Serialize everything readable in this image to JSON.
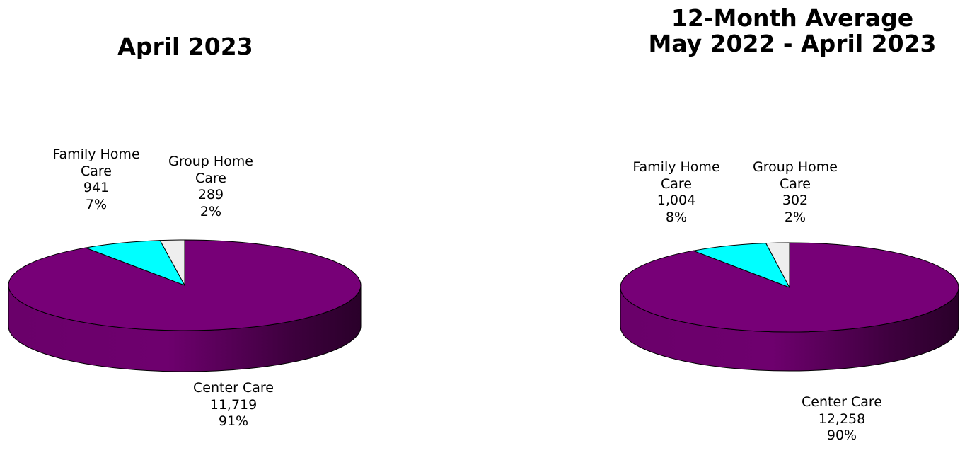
{
  "chart_data": [
    {
      "type": "pie",
      "title": "April 2023",
      "subtitle": "",
      "slices": [
        {
          "name": "Center Care",
          "value": 11719,
          "value_label": "11,719",
          "percent": "91%",
          "color": "#770077"
        },
        {
          "name": "Family Home Care",
          "value": 941,
          "value_label": "941",
          "percent": "7%",
          "color": "#00FFFF"
        },
        {
          "name": "Group Home Care",
          "value": 289,
          "value_label": "289",
          "percent": "2%",
          "color": "#EEEEEE"
        }
      ]
    },
    {
      "type": "pie",
      "title": "12-Month Average",
      "subtitle": "May 2022 - April 2023",
      "slices": [
        {
          "name": "Center Care",
          "value": 12258,
          "value_label": "12,258",
          "percent": "90%",
          "color": "#770077"
        },
        {
          "name": "Family Home Care",
          "value": 1004,
          "value_label": "1,004",
          "percent": "8%",
          "color": "#00FFFF"
        },
        {
          "name": "Group Home Care",
          "value": 302,
          "value_label": "302",
          "percent": "2%",
          "color": "#EEEEEE"
        }
      ]
    }
  ]
}
